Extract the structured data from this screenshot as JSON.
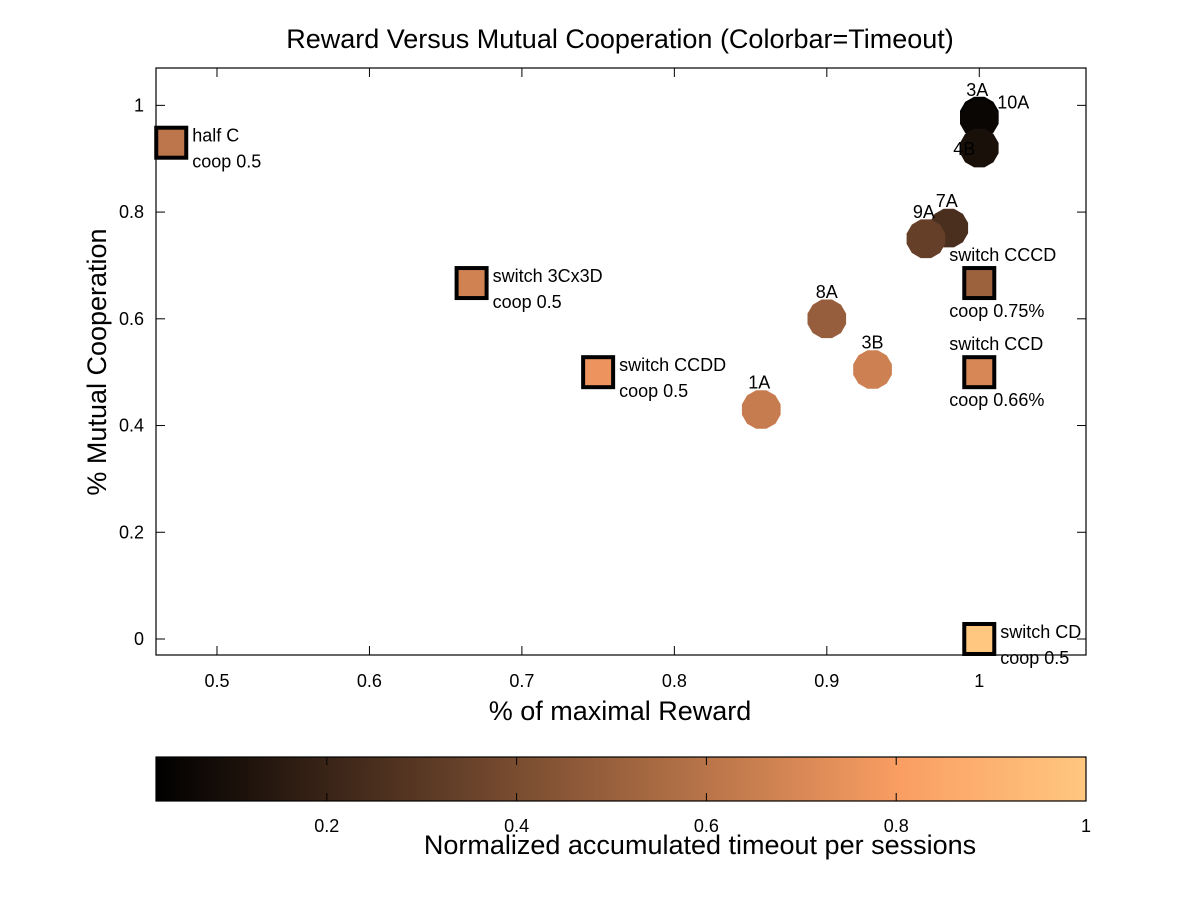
{
  "chart_data": {
    "type": "scatter",
    "title": "Reward Versus Mutual Cooperation (Colorbar=Timeout)",
    "xlabel": "% of maximal Reward",
    "ylabel": "% Mutual Cooperation",
    "xlim": [
      0.46,
      1.07
    ],
    "ylim": [
      -0.03,
      1.07
    ],
    "xticks": [
      0.5,
      0.6,
      0.7,
      0.8,
      0.9,
      1
    ],
    "xtick_labels": [
      "0.5",
      "0.6",
      "0.7",
      "0.8",
      "0.9",
      "1"
    ],
    "yticks": [
      0,
      0.2,
      0.4,
      0.6,
      0.8,
      1
    ],
    "ytick_labels": [
      "0",
      "0.2",
      "0.4",
      "0.6",
      "0.8",
      "1"
    ],
    "grid": false,
    "colorbar": {
      "label": "Normalized accumulated timeout per sessions",
      "range": [
        0.02,
        1.0
      ],
      "ticks": [
        0.2,
        0.4,
        0.6,
        0.8,
        1
      ],
      "tick_labels": [
        "0.2",
        "0.4",
        "0.6",
        "0.8",
        "1"
      ],
      "colormap": "copper"
    },
    "points": [
      {
        "label": "3A",
        "x": 1.0,
        "y": 0.98,
        "timeout": 0.02,
        "marker": "circle"
      },
      {
        "label": "10A",
        "x": 1.0,
        "y": 0.975,
        "timeout": 0.05,
        "marker": "circle"
      },
      {
        "label": "4B",
        "x": 1.0,
        "y": 0.92,
        "timeout": 0.1,
        "marker": "circle"
      },
      {
        "label": "7A",
        "x": 0.98,
        "y": 0.77,
        "timeout": 0.25,
        "marker": "circle"
      },
      {
        "label": "9A",
        "x": 0.965,
        "y": 0.75,
        "timeout": 0.33,
        "marker": "circle"
      },
      {
        "label": "8A",
        "x": 0.9,
        "y": 0.6,
        "timeout": 0.48,
        "marker": "circle"
      },
      {
        "label": "3B",
        "x": 0.93,
        "y": 0.505,
        "timeout": 0.65,
        "marker": "circle"
      },
      {
        "label": "1A",
        "x": 0.857,
        "y": 0.43,
        "timeout": 0.63,
        "marker": "circle"
      }
    ],
    "reference_points": [
      {
        "label_line1": "half C",
        "label_line2": "coop 0.5",
        "x": 0.47,
        "y": 0.93,
        "timeout": 0.6,
        "marker": "square",
        "label_position": "right"
      },
      {
        "label_line1": "switch 3Cx3D",
        "label_line2": "coop 0.5",
        "x": 0.667,
        "y": 0.667,
        "timeout": 0.66,
        "marker": "square",
        "label_position": "right"
      },
      {
        "label_line1": "switch CCDD",
        "label_line2": "coop 0.5",
        "x": 0.75,
        "y": 0.5,
        "timeout": 0.75,
        "marker": "square",
        "label_position": "right"
      },
      {
        "label_line1": "switch CCCD",
        "label_line2": "coop 0.75%",
        "x": 1.0,
        "y": 0.667,
        "timeout": 0.5,
        "marker": "square",
        "label_position": "above-below"
      },
      {
        "label_line1": "switch CCD",
        "label_line2": "coop 0.66%",
        "x": 1.0,
        "y": 0.5,
        "timeout": 0.68,
        "marker": "square",
        "label_position": "above-below"
      },
      {
        "label_line1": "switch CD",
        "label_line2": "coop 0.5",
        "x": 1.0,
        "y": 0.0,
        "timeout": 1.0,
        "marker": "square",
        "label_position": "right"
      }
    ]
  }
}
